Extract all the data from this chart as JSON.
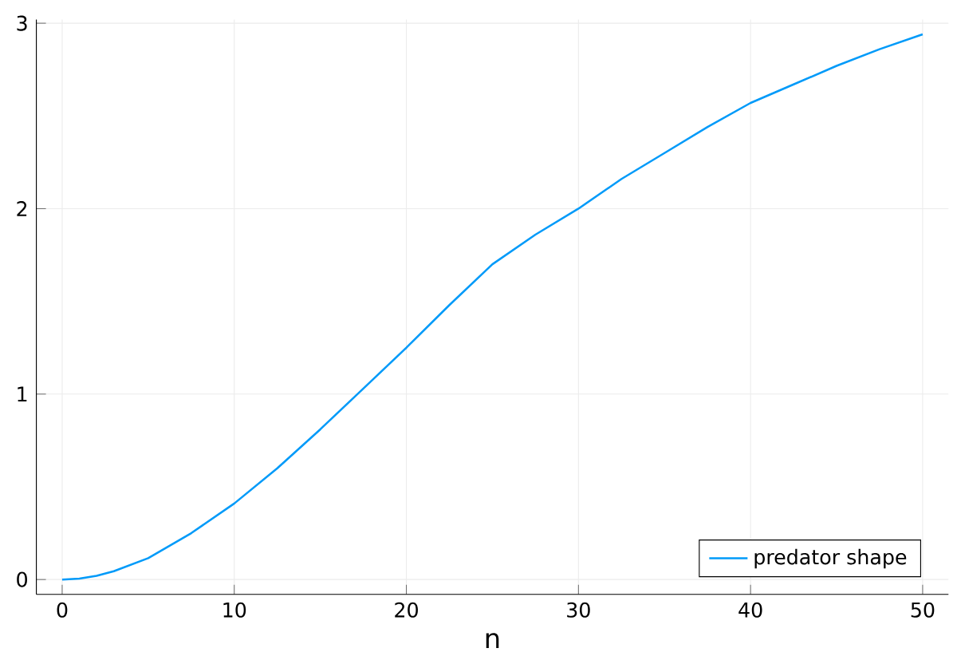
{
  "chart_data": {
    "type": "line",
    "xlabel": "n",
    "series": [
      {
        "name": "predator shape",
        "color": "#009af9",
        "x": [
          0,
          1,
          2,
          3,
          5,
          7.5,
          10,
          12.5,
          15,
          17.5,
          20,
          22.5,
          25,
          27.5,
          30,
          32.5,
          35,
          37.5,
          40,
          42.5,
          45,
          47.5,
          50
        ],
        "values": [
          0,
          0.005,
          0.02,
          0.045,
          0.115,
          0.25,
          0.41,
          0.6,
          0.81,
          1.03,
          1.25,
          1.48,
          1.7,
          1.86,
          2.0,
          2.16,
          2.3,
          2.44,
          2.57,
          2.67,
          2.77,
          2.86,
          2.94
        ]
      }
    ],
    "xlim": [
      -1.5,
      51.5
    ],
    "ylim": [
      -0.08,
      3.02
    ],
    "xticks": [
      0,
      10,
      20,
      30,
      40,
      50
    ],
    "yticks": [
      0,
      1,
      2,
      3
    ],
    "grid": true,
    "legend": "bottom right"
  }
}
